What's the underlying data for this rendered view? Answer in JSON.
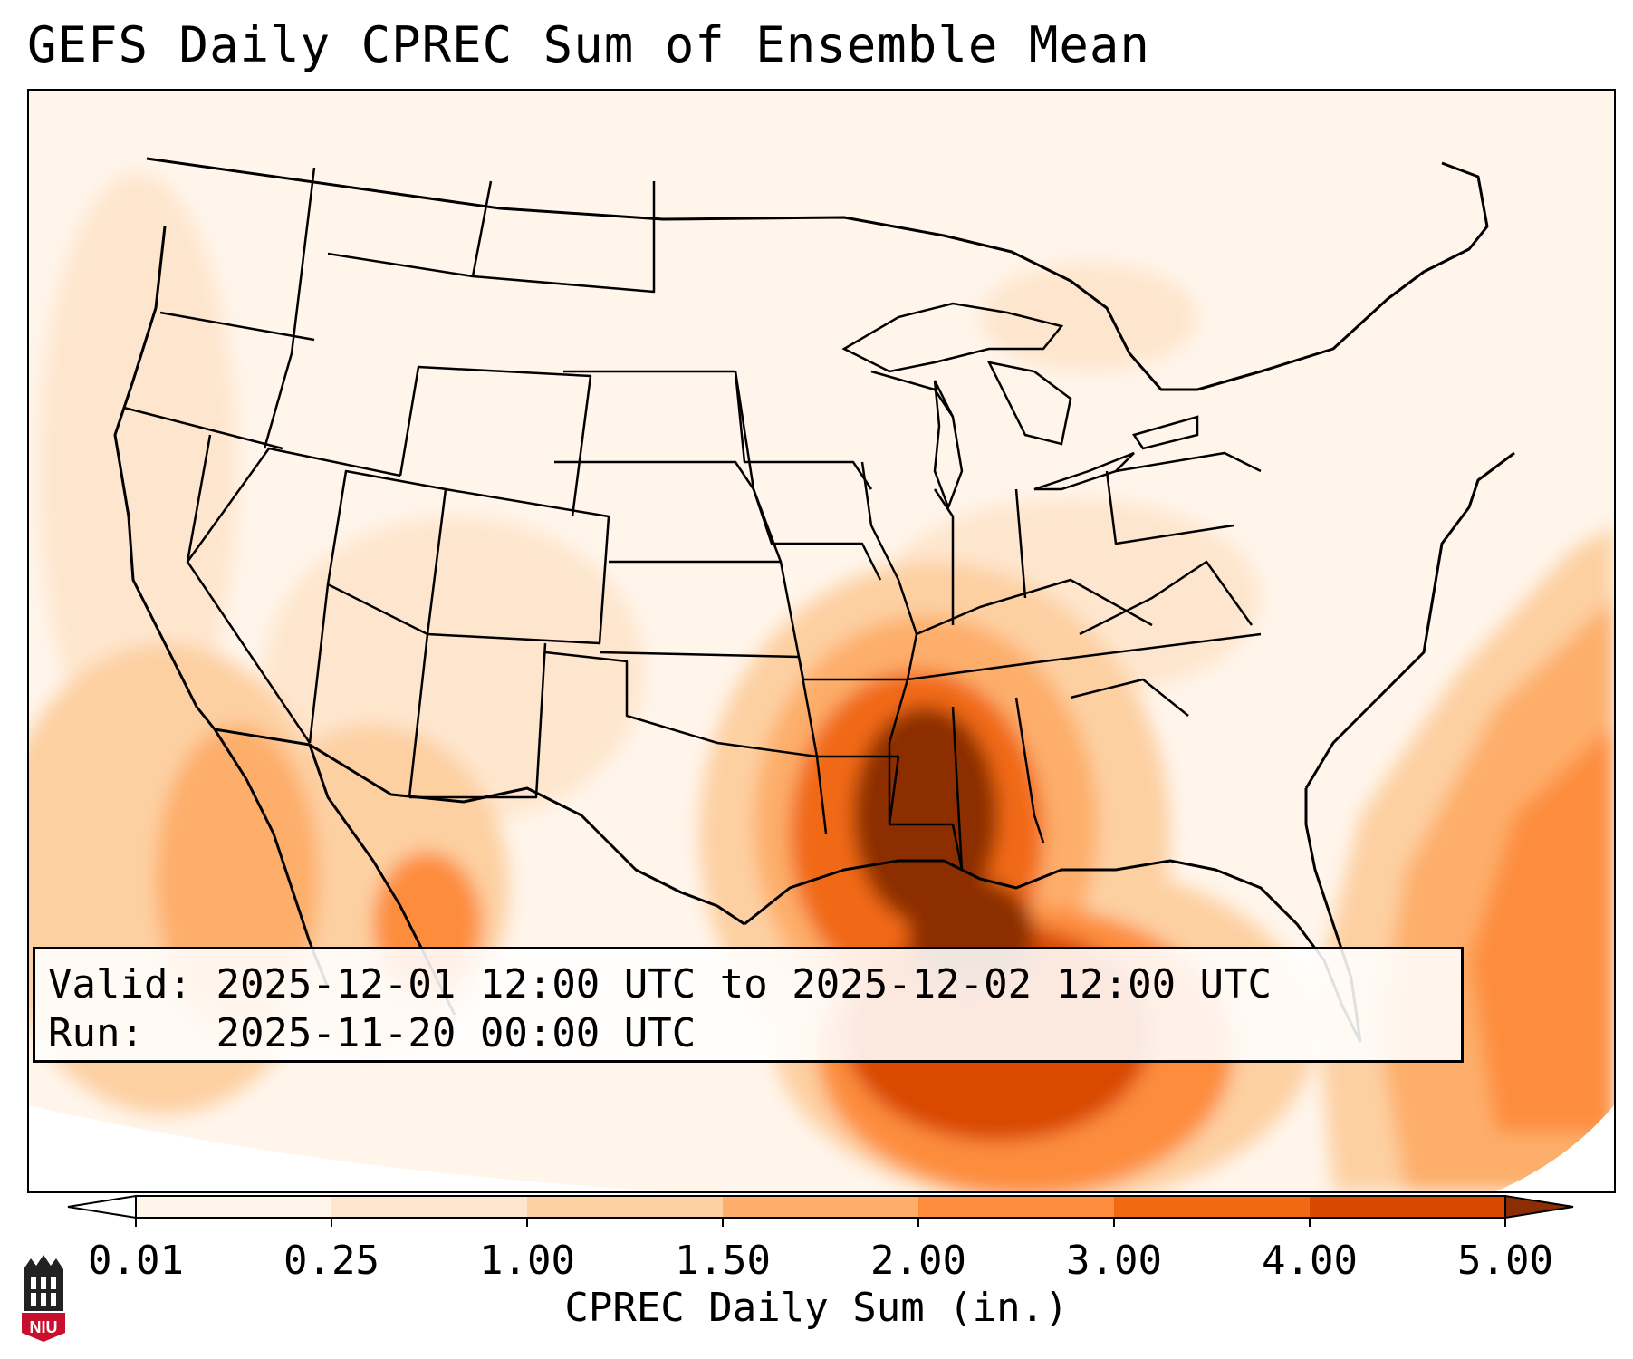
{
  "title": "GEFS Daily CPREC Sum of Ensemble Mean",
  "info": {
    "valid_label": "Valid:",
    "valid_value": "2025-12-01 12:00 UTC to 2025-12-02 12:00 UTC",
    "run_label": "Run:",
    "run_value": "2025-11-20 00:00 UTC"
  },
  "colorbar": {
    "label": "CPREC Daily Sum (in.)",
    "ticks": [
      "0.01",
      "0.25",
      "1.00",
      "1.50",
      "2.00",
      "3.00",
      "4.00",
      "5.00"
    ],
    "colors": [
      "#fff5eb",
      "#fee6ce",
      "#fdd0a2",
      "#fdae6b",
      "#fd8d3c",
      "#f16913",
      "#d94801",
      "#8c2d04"
    ],
    "extend": "both"
  },
  "logo": {
    "text": "NIU",
    "color": "#c8102e"
  },
  "map": {
    "region": "Contiguous United States",
    "projection": "Lambert Conformal",
    "field": "CPREC Daily Sum",
    "units": "in.",
    "max_region": "Arkansas / Louisiana / eastern Texas"
  }
}
